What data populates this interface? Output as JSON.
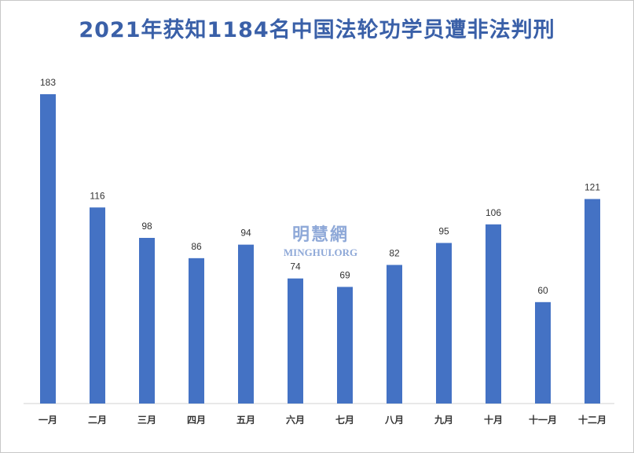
{
  "chart_data": {
    "type": "bar",
    "title": "2021年获知1184名中国法轮功学员遭非法判刑",
    "categories": [
      "一月",
      "二月",
      "三月",
      "四月",
      "五月",
      "六月",
      "七月",
      "八月",
      "九月",
      "十月",
      "十一月",
      "十二月"
    ],
    "values": [
      183,
      116,
      98,
      86,
      94,
      74,
      69,
      82,
      95,
      106,
      60,
      121
    ],
    "ylim": [
      0,
      183
    ],
    "bar_color": "#4472c4",
    "grid": false,
    "legend": "none"
  },
  "watermark": {
    "cn": "明慧網",
    "en": "MINGHUI.ORG"
  }
}
